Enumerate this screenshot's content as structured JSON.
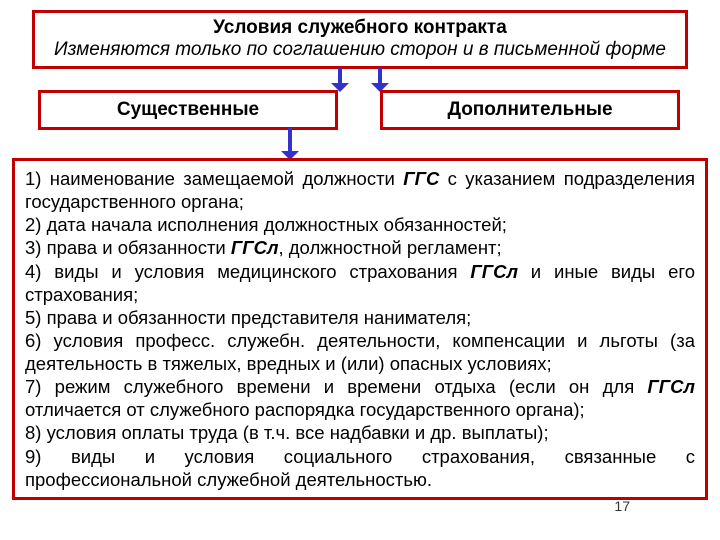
{
  "colors": {
    "border": "#c00000",
    "arrow": "#3333cc",
    "text": "#000000"
  },
  "header": {
    "title": "Условия служебного контракта",
    "subtitle": "Изменяются только по соглашению сторон и в письменной форме"
  },
  "categories": {
    "left": "Существенные",
    "right": "Дополнительные"
  },
  "content": {
    "l1a": "1) наименование замещаемой должности ",
    "l1b": "ГГС",
    "l1c": " с указанием подразделения государственного органа;",
    "l2": "2) дата начала исполнения должностных обязанностей;",
    "l3a": "3) права и обязанности ",
    "l3b": "ГГСл",
    "l3c": ", должностной регламент;",
    "l4a": "4) виды и условия медицинского страхования ",
    "l4b": "ГГСл",
    "l4c": " и иные виды его страхования;",
    "l5": "5) права и обязанности представителя нанимателя;",
    "l6": "6) условия професс. служебн. деятельности, компенсации и льготы (за деятельность в тяжелых, вредных и (или) опасных условиях;",
    "l7a": "7) режим служебного времени и времени отдыха (если он для ",
    "l7b": "ГГСл",
    "l7c": " отличается от служебного распорядка государственного органа);",
    "l8": "8) условия оплаты труда (в т.ч. все надбавки и др. выплаты);",
    "l9": "9) виды и условия социального страхования, связанные с профессиональной служебной деятельностью."
  },
  "slide_number": "17",
  "arrows": {
    "stem_width": 4,
    "head_size": 9
  }
}
